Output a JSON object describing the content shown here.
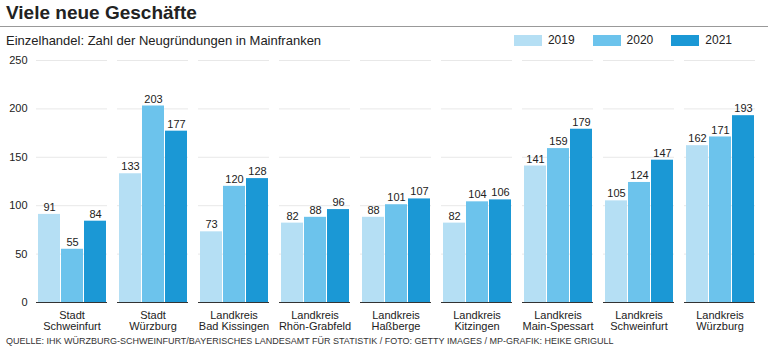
{
  "chart_data": {
    "type": "bar",
    "title": "Viele neue Geschäfte",
    "subtitle": "Einzelhandel: Zahl der Neugründungen in Mainfranken",
    "caption": "QUELLE: IHK WÜRZBURG-SCHWEINFURT/BAYERISCHES LANDESAMT FÜR STATISTIK / FOTO: GETTY IMAGES / MP-GRAFIK: HEIKE GRIGULL",
    "categories": [
      "Stadt\nSchweinfurt",
      "Stadt\nWürzburg",
      "Landkreis\nBad Kissingen",
      "Landkreis\nRhön-Grabfeld",
      "Landkreis\nHaßberge",
      "Landkreis\nKitzingen",
      "Landkreis\nMain-Spessart",
      "Landkreis\nSchweinfurt",
      "Landkreis\nWürzburg"
    ],
    "series": [
      {
        "name": "2019",
        "color": "#b5dff4",
        "values": [
          91,
          133,
          73,
          82,
          88,
          82,
          141,
          105,
          162
        ]
      },
      {
        "name": "2020",
        "color": "#6cc3ec",
        "values": [
          55,
          203,
          120,
          88,
          101,
          104,
          159,
          124,
          171
        ]
      },
      {
        "name": "2021",
        "color": "#1b98d5",
        "values": [
          84,
          177,
          128,
          96,
          107,
          106,
          179,
          147,
          193
        ]
      }
    ],
    "ylim": [
      0,
      250
    ],
    "yticks": [
      0,
      50,
      100,
      150,
      200,
      250
    ],
    "grid": true,
    "legend": "top-right",
    "data_labels": true
  }
}
